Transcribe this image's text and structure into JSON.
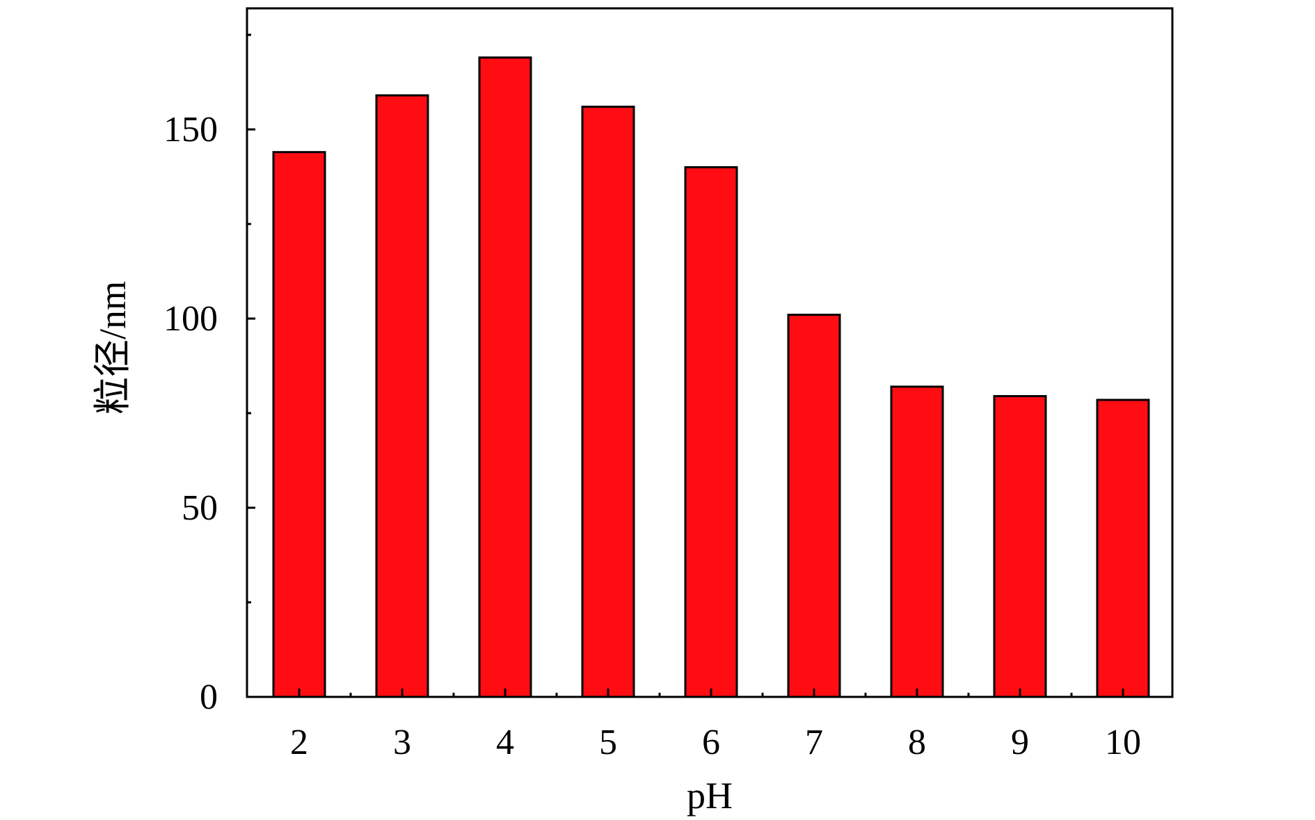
{
  "chart_data": {
    "type": "bar",
    "title": "",
    "xlabel": "pH",
    "ylabel": "粒径/nm",
    "categories": [
      "2",
      "3",
      "4",
      "5",
      "6",
      "7",
      "8",
      "9",
      "10"
    ],
    "series": [
      {
        "values": [
          144,
          159,
          169,
          156,
          140,
          101,
          82,
          79.5,
          78.5
        ]
      }
    ],
    "ylim": [
      0,
      182
    ],
    "yticks": [
      0,
      50,
      100,
      150
    ],
    "yminor_step": 25,
    "grid": false,
    "legend": "none",
    "colors": {
      "bar_fill": "#ff0d12",
      "bar_edge": "#000000",
      "axis": "#000000",
      "text": "#000000"
    }
  }
}
